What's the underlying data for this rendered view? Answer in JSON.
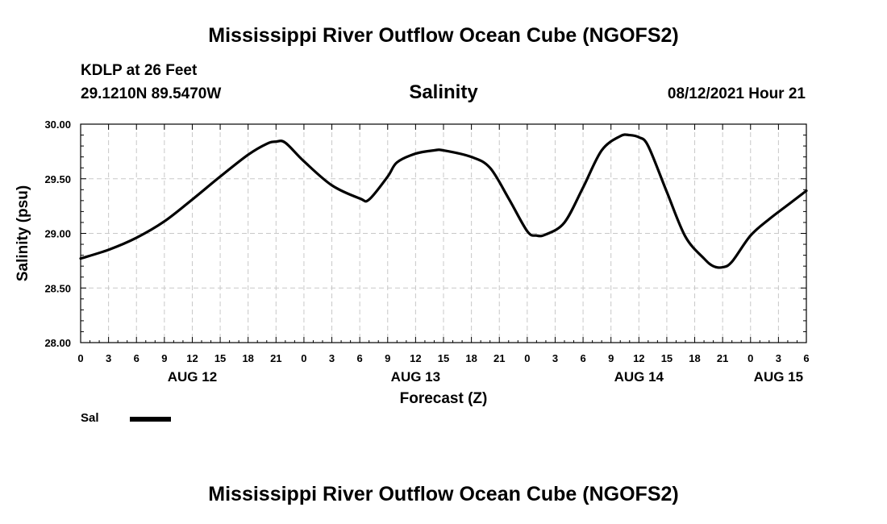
{
  "header": {
    "title": "Mississippi River Outflow Ocean Cube (NGOFS2)",
    "station": "KDLP at 26 Feet",
    "coords": "29.1210N  89.5470W",
    "subtitle": "Salinity",
    "datetime": "08/12/2021 Hour 21"
  },
  "footer": {
    "title": "Mississippi River Outflow Ocean Cube (NGOFS2)"
  },
  "legend": {
    "label": "Sal",
    "color": "#000000"
  },
  "chart_data": {
    "type": "line",
    "title": "Salinity",
    "xlabel": "Forecast (Z)",
    "ylabel": "Salinity (psu)",
    "xlim": [
      0,
      78
    ],
    "ylim": [
      28.0,
      30.0
    ],
    "grid": true,
    "y_ticks": [
      {
        "value": 28.0,
        "label": "28.00"
      },
      {
        "value": 28.5,
        "label": "28.50"
      },
      {
        "value": 29.0,
        "label": "29.00"
      },
      {
        "value": 29.5,
        "label": "29.50"
      },
      {
        "value": 30.0,
        "label": "30.00"
      }
    ],
    "x_ticks": [
      {
        "hour": 0,
        "label": "0"
      },
      {
        "hour": 3,
        "label": "3"
      },
      {
        "hour": 6,
        "label": "6"
      },
      {
        "hour": 9,
        "label": "9"
      },
      {
        "hour": 12,
        "label": "12"
      },
      {
        "hour": 15,
        "label": "15"
      },
      {
        "hour": 18,
        "label": "18"
      },
      {
        "hour": 21,
        "label": "21"
      },
      {
        "hour": 24,
        "label": "0"
      },
      {
        "hour": 27,
        "label": "3"
      },
      {
        "hour": 30,
        "label": "6"
      },
      {
        "hour": 33,
        "label": "9"
      },
      {
        "hour": 36,
        "label": "12"
      },
      {
        "hour": 39,
        "label": "15"
      },
      {
        "hour": 42,
        "label": "18"
      },
      {
        "hour": 45,
        "label": "21"
      },
      {
        "hour": 48,
        "label": "0"
      },
      {
        "hour": 51,
        "label": "3"
      },
      {
        "hour": 54,
        "label": "6"
      },
      {
        "hour": 57,
        "label": "9"
      },
      {
        "hour": 60,
        "label": "12"
      },
      {
        "hour": 63,
        "label": "15"
      },
      {
        "hour": 66,
        "label": "18"
      },
      {
        "hour": 69,
        "label": "21"
      },
      {
        "hour": 72,
        "label": "0"
      },
      {
        "hour": 75,
        "label": "3"
      },
      {
        "hour": 78,
        "label": "6"
      }
    ],
    "day_labels": [
      {
        "hour": 12,
        "label": "AUG 12"
      },
      {
        "hour": 36,
        "label": "AUG 13"
      },
      {
        "hour": 60,
        "label": "AUG 14"
      },
      {
        "hour": 75,
        "label": "AUG 15"
      }
    ],
    "series": [
      {
        "name": "Sal",
        "color": "#000000",
        "x": [
          0,
          3,
          6,
          9,
          12,
          15,
          18,
          20,
          21,
          22,
          24,
          27,
          30,
          31,
          33,
          34,
          36,
          38,
          39,
          42,
          44,
          46,
          48,
          49,
          50,
          52,
          54,
          56,
          58,
          59,
          60,
          61,
          63,
          65,
          67,
          68,
          69,
          70,
          72,
          74,
          76,
          78
        ],
        "values": [
          28.77,
          28.85,
          28.96,
          29.11,
          29.31,
          29.52,
          29.72,
          29.82,
          29.84,
          29.83,
          29.66,
          29.44,
          29.32,
          29.31,
          29.52,
          29.65,
          29.73,
          29.76,
          29.76,
          29.7,
          29.6,
          29.32,
          29.02,
          28.98,
          28.99,
          29.1,
          29.42,
          29.76,
          29.89,
          29.9,
          29.88,
          29.8,
          29.38,
          28.97,
          28.77,
          28.7,
          28.69,
          28.74,
          28.98,
          29.13,
          29.26,
          29.39
        ]
      }
    ]
  }
}
